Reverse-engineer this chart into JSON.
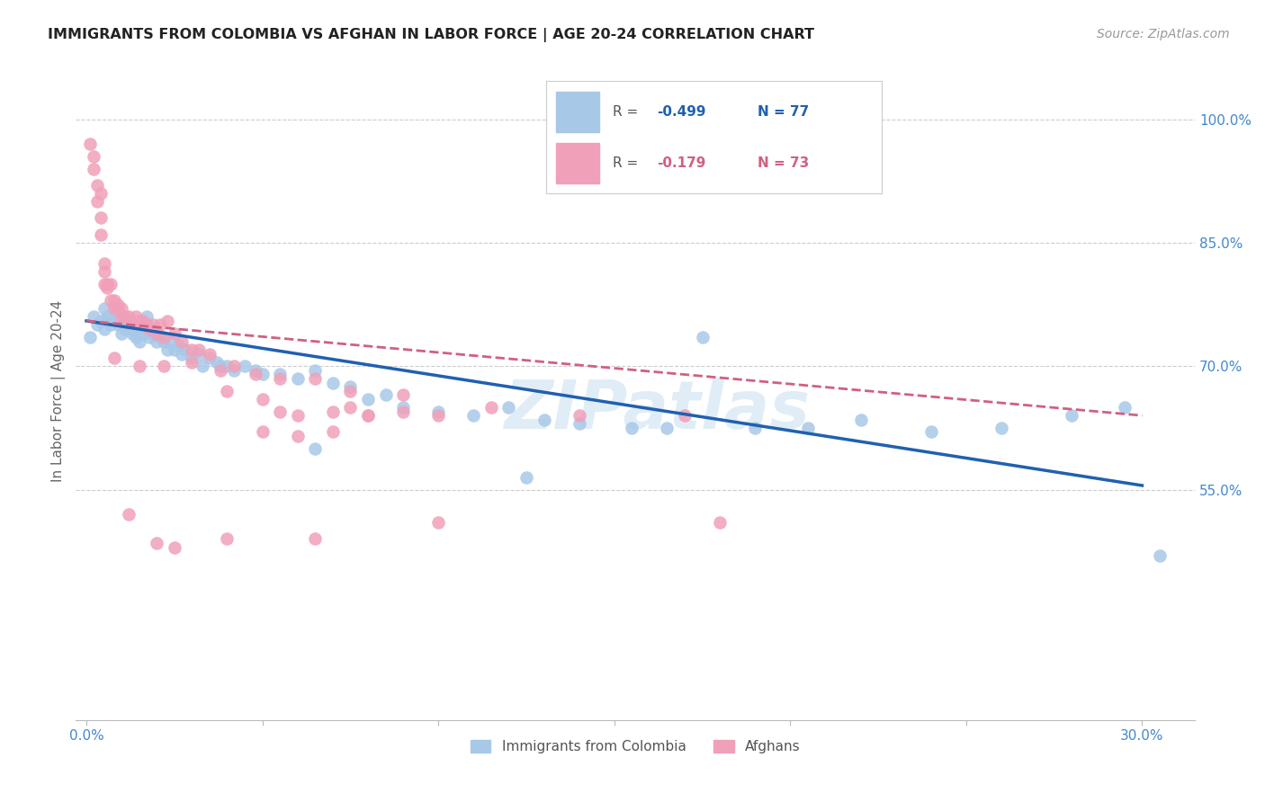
{
  "title": "IMMIGRANTS FROM COLOMBIA VS AFGHAN IN LABOR FORCE | AGE 20-24 CORRELATION CHART",
  "source": "Source: ZipAtlas.com",
  "ylabel": "In Labor Force | Age 20-24",
  "xlim": [
    -0.003,
    0.315
  ],
  "ylim": [
    0.27,
    1.07
  ],
  "colombia_color": "#a8c8e8",
  "afghan_color": "#f0a0b8",
  "colombia_line_color": "#2060b0",
  "afghan_line_color": "#d06080",
  "colombia_R": -0.499,
  "colombia_N": 77,
  "afghan_R": -0.179,
  "afghan_N": 73,
  "watermark": "ZIPatlas",
  "y_ticks": [
    0.55,
    0.7,
    0.85,
    1.0
  ],
  "y_tick_labels": [
    "55.0%",
    "70.0%",
    "85.0%",
    "100.0%"
  ],
  "x_tick_positions": [
    0.0,
    0.05,
    0.1,
    0.15,
    0.2,
    0.25,
    0.3
  ],
  "x_tick_labels": [
    "0.0%",
    "",
    "",
    "",
    "",
    "",
    "30.0%"
  ],
  "colombia_points": [
    [
      0.001,
      0.735
    ],
    [
      0.002,
      0.76
    ],
    [
      0.003,
      0.75
    ],
    [
      0.004,
      0.755
    ],
    [
      0.005,
      0.77
    ],
    [
      0.005,
      0.745
    ],
    [
      0.006,
      0.76
    ],
    [
      0.006,
      0.755
    ],
    [
      0.007,
      0.75
    ],
    [
      0.007,
      0.755
    ],
    [
      0.008,
      0.765
    ],
    [
      0.008,
      0.77
    ],
    [
      0.009,
      0.75
    ],
    [
      0.009,
      0.76
    ],
    [
      0.01,
      0.76
    ],
    [
      0.01,
      0.755
    ],
    [
      0.01,
      0.74
    ],
    [
      0.011,
      0.755
    ],
    [
      0.011,
      0.745
    ],
    [
      0.012,
      0.75
    ],
    [
      0.012,
      0.755
    ],
    [
      0.013,
      0.745
    ],
    [
      0.013,
      0.74
    ],
    [
      0.014,
      0.735
    ],
    [
      0.015,
      0.745
    ],
    [
      0.015,
      0.73
    ],
    [
      0.016,
      0.74
    ],
    [
      0.017,
      0.745
    ],
    [
      0.017,
      0.76
    ],
    [
      0.018,
      0.735
    ],
    [
      0.019,
      0.74
    ],
    [
      0.02,
      0.73
    ],
    [
      0.021,
      0.735
    ],
    [
      0.022,
      0.73
    ],
    [
      0.023,
      0.72
    ],
    [
      0.024,
      0.73
    ],
    [
      0.025,
      0.72
    ],
    [
      0.026,
      0.725
    ],
    [
      0.027,
      0.715
    ],
    [
      0.028,
      0.72
    ],
    [
      0.03,
      0.71
    ],
    [
      0.032,
      0.715
    ],
    [
      0.033,
      0.7
    ],
    [
      0.035,
      0.71
    ],
    [
      0.037,
      0.705
    ],
    [
      0.038,
      0.7
    ],
    [
      0.04,
      0.7
    ],
    [
      0.042,
      0.695
    ],
    [
      0.045,
      0.7
    ],
    [
      0.048,
      0.695
    ],
    [
      0.05,
      0.69
    ],
    [
      0.055,
      0.69
    ],
    [
      0.06,
      0.685
    ],
    [
      0.065,
      0.695
    ],
    [
      0.07,
      0.68
    ],
    [
      0.075,
      0.675
    ],
    [
      0.08,
      0.66
    ],
    [
      0.085,
      0.665
    ],
    [
      0.09,
      0.65
    ],
    [
      0.1,
      0.645
    ],
    [
      0.11,
      0.64
    ],
    [
      0.12,
      0.65
    ],
    [
      0.13,
      0.635
    ],
    [
      0.14,
      0.63
    ],
    [
      0.155,
      0.625
    ],
    [
      0.165,
      0.625
    ],
    [
      0.175,
      0.735
    ],
    [
      0.19,
      0.625
    ],
    [
      0.205,
      0.625
    ],
    [
      0.22,
      0.635
    ],
    [
      0.24,
      0.62
    ],
    [
      0.26,
      0.625
    ],
    [
      0.28,
      0.64
    ],
    [
      0.295,
      0.65
    ],
    [
      0.305,
      0.47
    ],
    [
      0.065,
      0.6
    ],
    [
      0.125,
      0.565
    ]
  ],
  "afghan_points": [
    [
      0.001,
      0.97
    ],
    [
      0.002,
      0.955
    ],
    [
      0.002,
      0.94
    ],
    [
      0.003,
      0.92
    ],
    [
      0.003,
      0.9
    ],
    [
      0.004,
      0.91
    ],
    [
      0.004,
      0.88
    ],
    [
      0.004,
      0.86
    ],
    [
      0.005,
      0.825
    ],
    [
      0.005,
      0.815
    ],
    [
      0.005,
      0.8
    ],
    [
      0.006,
      0.8
    ],
    [
      0.006,
      0.795
    ],
    [
      0.007,
      0.8
    ],
    [
      0.007,
      0.78
    ],
    [
      0.008,
      0.78
    ],
    [
      0.008,
      0.77
    ],
    [
      0.009,
      0.775
    ],
    [
      0.009,
      0.77
    ],
    [
      0.01,
      0.77
    ],
    [
      0.01,
      0.76
    ],
    [
      0.011,
      0.76
    ],
    [
      0.012,
      0.76
    ],
    [
      0.013,
      0.755
    ],
    [
      0.014,
      0.76
    ],
    [
      0.015,
      0.755
    ],
    [
      0.016,
      0.755
    ],
    [
      0.017,
      0.75
    ],
    [
      0.018,
      0.745
    ],
    [
      0.019,
      0.75
    ],
    [
      0.02,
      0.74
    ],
    [
      0.021,
      0.75
    ],
    [
      0.022,
      0.735
    ],
    [
      0.023,
      0.755
    ],
    [
      0.025,
      0.74
    ],
    [
      0.027,
      0.73
    ],
    [
      0.03,
      0.72
    ],
    [
      0.032,
      0.72
    ],
    [
      0.035,
      0.715
    ],
    [
      0.038,
      0.695
    ],
    [
      0.042,
      0.7
    ],
    [
      0.048,
      0.69
    ],
    [
      0.055,
      0.685
    ],
    [
      0.065,
      0.685
    ],
    [
      0.075,
      0.67
    ],
    [
      0.09,
      0.665
    ],
    [
      0.115,
      0.65
    ],
    [
      0.14,
      0.64
    ],
    [
      0.17,
      0.64
    ],
    [
      0.18,
      0.51
    ],
    [
      0.012,
      0.52
    ],
    [
      0.02,
      0.485
    ],
    [
      0.04,
      0.49
    ],
    [
      0.08,
      0.64
    ],
    [
      0.1,
      0.64
    ],
    [
      0.008,
      0.71
    ],
    [
      0.015,
      0.7
    ],
    [
      0.022,
      0.7
    ],
    [
      0.03,
      0.705
    ],
    [
      0.04,
      0.67
    ],
    [
      0.05,
      0.66
    ],
    [
      0.055,
      0.645
    ],
    [
      0.06,
      0.64
    ],
    [
      0.07,
      0.645
    ],
    [
      0.075,
      0.65
    ],
    [
      0.08,
      0.64
    ],
    [
      0.09,
      0.645
    ],
    [
      0.05,
      0.62
    ],
    [
      0.06,
      0.615
    ],
    [
      0.07,
      0.62
    ],
    [
      0.025,
      0.48
    ],
    [
      0.065,
      0.49
    ],
    [
      0.1,
      0.51
    ]
  ]
}
